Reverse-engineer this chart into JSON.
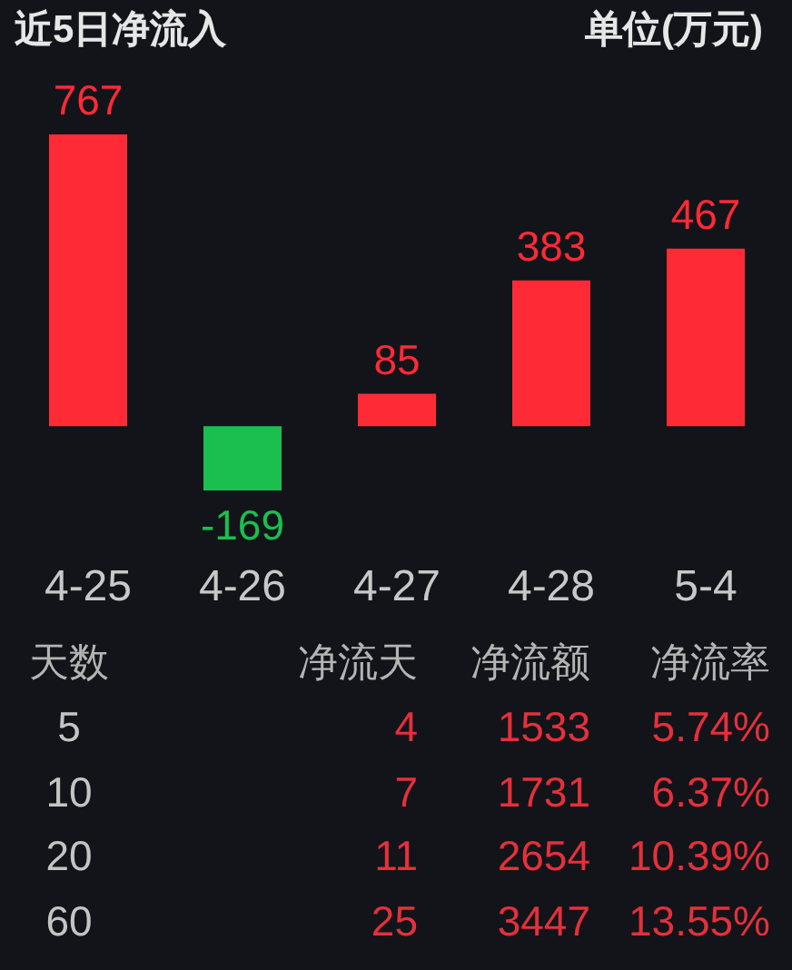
{
  "chart_data": [
    {
      "type": "bar",
      "title": "近5日净流入",
      "subtitle": "单位(万元)",
      "categories": [
        "4-25",
        "4-26",
        "4-27",
        "4-28",
        "5-4"
      ],
      "values": [
        767,
        -169,
        85,
        383,
        467
      ],
      "colors": [
        "#fe2a36",
        "#1abf50",
        "#fe2a36",
        "#fe2a36",
        "#fe2a36"
      ],
      "data_labels": true
    },
    {
      "type": "other",
      "categories": [
        "天数",
        "净流天",
        "净流额",
        "净流率"
      ],
      "cell_labels": [
        [
          "5",
          "4",
          "1533",
          "5.74%"
        ],
        [
          "10",
          "7",
          "1731",
          "6.37%"
        ],
        [
          "20",
          "11",
          "2654",
          "10.39%"
        ],
        [
          "60",
          "25",
          "3447",
          "13.55%"
        ]
      ],
      "colors": [
        "#c4c4c4",
        "#e5303b",
        "#e5303b",
        "#e5303b"
      ]
    }
  ]
}
